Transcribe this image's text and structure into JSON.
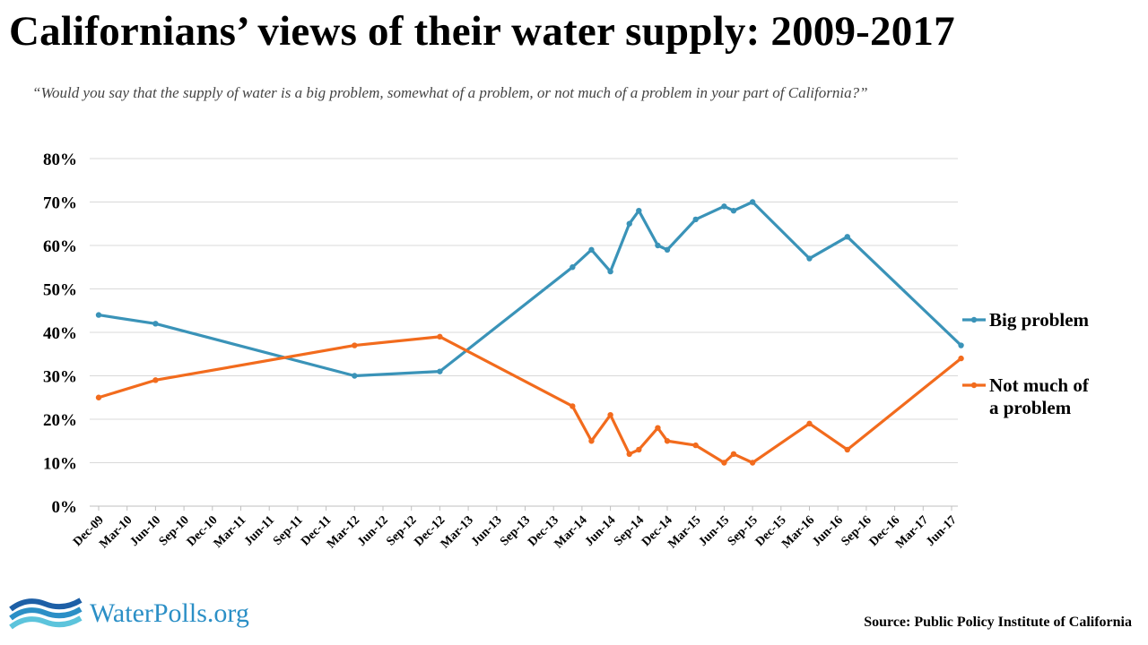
{
  "header": {
    "title": "Californians’ views of their water supply: 2009-2017",
    "subtitle": "“Would you say that the supply of  water is a big problem, somewhat of  a problem, or not much of  a problem in your part of  California?”"
  },
  "footer": {
    "logo_text": "WaterPolls.org",
    "source": "Source: Public Policy Institute of California"
  },
  "colors": {
    "big_problem": "#3a93b8",
    "not_much": "#f26b1d",
    "grid": "#d9d9d9"
  },
  "chart_data": {
    "type": "line",
    "title": "Californians’ views of their water supply: 2009-2017",
    "x_tick_labels": [
      "Dec-09",
      "Mar-10",
      "Jun-10",
      "Sep-10",
      "Dec-10",
      "Mar-11",
      "Jun-11",
      "Sep-11",
      "Dec-11",
      "Mar-12",
      "Jun-12",
      "Sep-12",
      "Dec-12",
      "Mar-13",
      "Jun-13",
      "Sep-13",
      "Dec-13",
      "Mar-14",
      "Jun-14",
      "Sep-14",
      "Dec-14",
      "Mar-15",
      "Jun-15",
      "Sep-15",
      "Dec-15",
      "Mar-16",
      "Jun-16",
      "Sep-16",
      "Dec-16",
      "Mar-17",
      "Jun-17"
    ],
    "y_tick_labels": [
      "0%",
      "10%",
      "20%",
      "30%",
      "40%",
      "50%",
      "60%",
      "70%",
      "80%"
    ],
    "ylim": [
      0,
      80
    ],
    "grid": true,
    "legend_position": "right",
    "series": [
      {
        "name": "Big problem",
        "color": "#3a93b8",
        "points": [
          {
            "x": "2009-12",
            "y": 44
          },
          {
            "x": "2010-06",
            "y": 42
          },
          {
            "x": "2012-03",
            "y": 30
          },
          {
            "x": "2012-12",
            "y": 31
          },
          {
            "x": "2014-02",
            "y": 55
          },
          {
            "x": "2014-04",
            "y": 59
          },
          {
            "x": "2014-06",
            "y": 54
          },
          {
            "x": "2014-08",
            "y": 65
          },
          {
            "x": "2014-09",
            "y": 68
          },
          {
            "x": "2014-11",
            "y": 60
          },
          {
            "x": "2014-12",
            "y": 59
          },
          {
            "x": "2015-03",
            "y": 66
          },
          {
            "x": "2015-06",
            "y": 69
          },
          {
            "x": "2015-07",
            "y": 68
          },
          {
            "x": "2015-09",
            "y": 70
          },
          {
            "x": "2016-03",
            "y": 57
          },
          {
            "x": "2016-07",
            "y": 62
          },
          {
            "x": "2017-07",
            "y": 37
          }
        ]
      },
      {
        "name": "Not much of a problem",
        "color": "#f26b1d",
        "points": [
          {
            "x": "2009-12",
            "y": 25
          },
          {
            "x": "2010-06",
            "y": 29
          },
          {
            "x": "2012-03",
            "y": 37
          },
          {
            "x": "2012-12",
            "y": 39
          },
          {
            "x": "2014-02",
            "y": 23
          },
          {
            "x": "2014-04",
            "y": 15
          },
          {
            "x": "2014-06",
            "y": 21
          },
          {
            "x": "2014-08",
            "y": 12
          },
          {
            "x": "2014-09",
            "y": 13
          },
          {
            "x": "2014-11",
            "y": 18
          },
          {
            "x": "2014-12",
            "y": 15
          },
          {
            "x": "2015-03",
            "y": 14
          },
          {
            "x": "2015-06",
            "y": 10
          },
          {
            "x": "2015-07",
            "y": 12
          },
          {
            "x": "2015-09",
            "y": 10
          },
          {
            "x": "2016-03",
            "y": 19
          },
          {
            "x": "2016-07",
            "y": 13
          },
          {
            "x": "2017-07",
            "y": 34
          }
        ]
      }
    ],
    "legend": [
      {
        "label_lines": [
          "Big problem"
        ]
      },
      {
        "label_lines": [
          "Not much of",
          "a problem"
        ]
      }
    ]
  }
}
